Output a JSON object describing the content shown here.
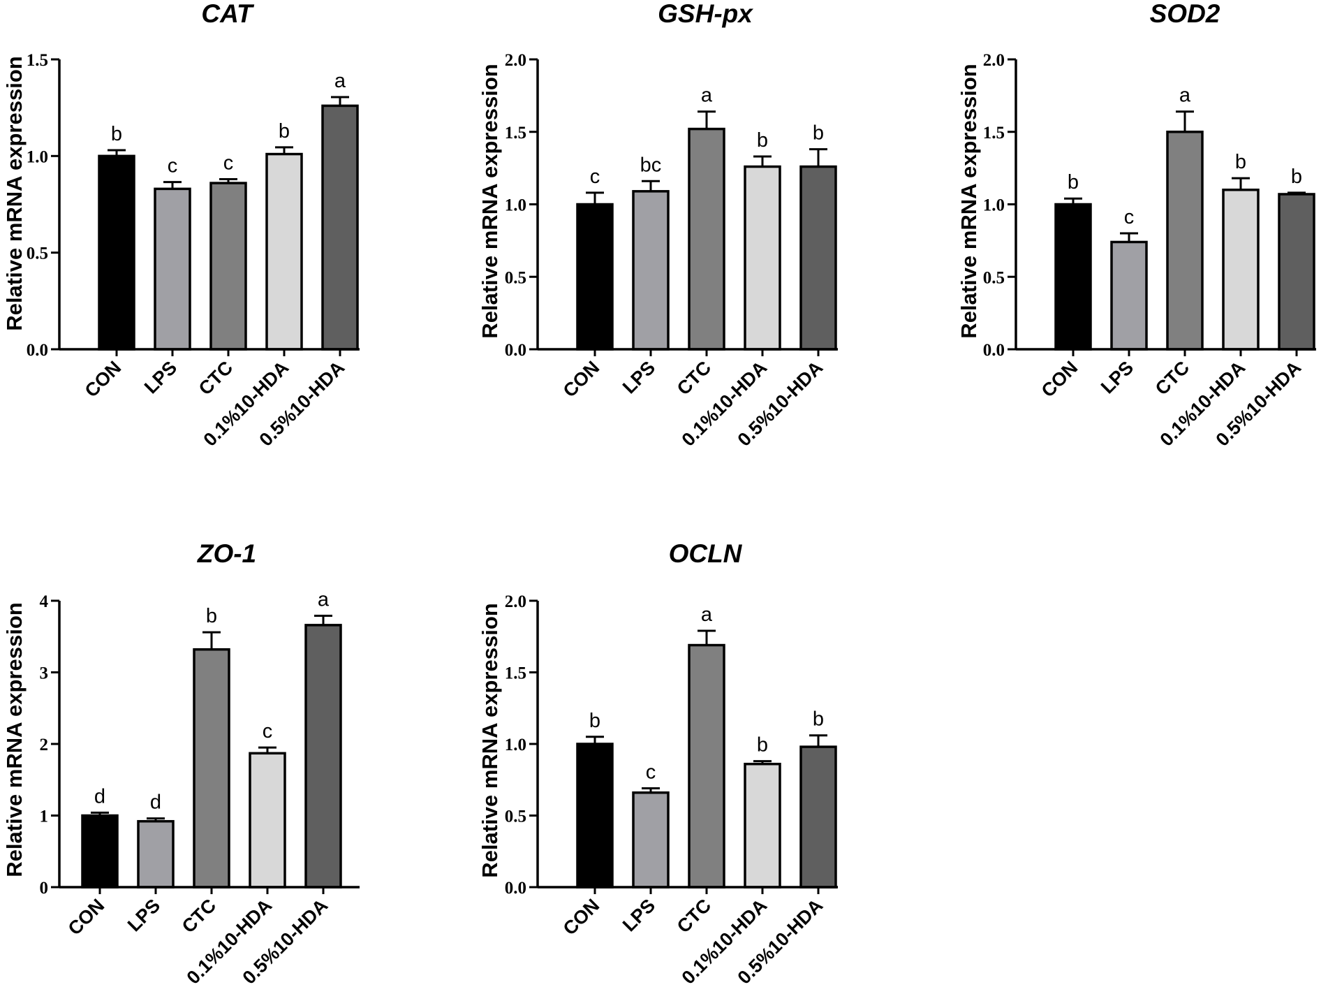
{
  "colors": {
    "bars": [
      "#000000",
      "#a0a0a5",
      "#808080",
      "#d8d8d8",
      "#5f5f5f"
    ],
    "axis": "#000000"
  },
  "chart_data": [
    {
      "type": "bar",
      "title": "CAT",
      "ylabel": "Relative mRNA expression",
      "xlabel": "",
      "categories": [
        "CON",
        "LPS",
        "CTC",
        "0.1%10-HDA",
        "0.5%10-HDA"
      ],
      "values": [
        1.0,
        0.83,
        0.86,
        1.01,
        1.26
      ],
      "errors": [
        0.03,
        0.035,
        0.02,
        0.035,
        0.045
      ],
      "significance": [
        "b",
        "c",
        "c",
        "b",
        "a"
      ],
      "ylim": [
        0,
        1.5
      ],
      "yticks": [
        0,
        0.5,
        1.0,
        1.5
      ],
      "ytick_labels": [
        "0.0",
        "0.5",
        "1.0",
        "1.5"
      ]
    },
    {
      "type": "bar",
      "title": "GSH-px",
      "ylabel": "Relative mRNA expression",
      "xlabel": "",
      "categories": [
        "CON",
        "LPS",
        "CTC",
        "0.1%10-HDA",
        "0.5%10-HDA"
      ],
      "values": [
        1.0,
        1.09,
        1.52,
        1.26,
        1.26
      ],
      "errors": [
        0.08,
        0.07,
        0.12,
        0.07,
        0.12
      ],
      "significance": [
        "c",
        "bc",
        "a",
        "b",
        "b"
      ],
      "ylim": [
        0,
        2.0
      ],
      "yticks": [
        0,
        0.5,
        1.0,
        1.5,
        2.0
      ],
      "ytick_labels": [
        "0.0",
        "0.5",
        "1.0",
        "1.5",
        "2.0"
      ]
    },
    {
      "type": "bar",
      "title": "SOD2",
      "ylabel": "Relative mRNA expression",
      "xlabel": "",
      "categories": [
        "CON",
        "LPS",
        "CTC",
        "0.1%10-HDA",
        "0.5%10-HDA"
      ],
      "values": [
        1.0,
        0.74,
        1.5,
        1.1,
        1.07
      ],
      "errors": [
        0.04,
        0.06,
        0.14,
        0.08,
        0.01
      ],
      "significance": [
        "b",
        "c",
        "a",
        "b",
        "b"
      ],
      "ylim": [
        0,
        2.0
      ],
      "yticks": [
        0,
        0.5,
        1.0,
        1.5,
        2.0
      ],
      "ytick_labels": [
        "0.0",
        "0.5",
        "1.0",
        "1.5",
        "2.0"
      ]
    },
    {
      "type": "bar",
      "title": "ZO-1",
      "ylabel": "Relative mRNA expression",
      "xlabel": "",
      "categories": [
        "CON",
        "LPS",
        "CTC",
        "0.1%10-HDA",
        "0.5%10-HDA"
      ],
      "values": [
        1.0,
        0.92,
        3.32,
        1.87,
        3.66
      ],
      "errors": [
        0.04,
        0.04,
        0.24,
        0.08,
        0.13
      ],
      "significance": [
        "d",
        "d",
        "b",
        "c",
        "a"
      ],
      "ylim": [
        0,
        4
      ],
      "yticks": [
        0,
        1,
        2,
        3,
        4
      ],
      "ytick_labels": [
        "0",
        "1",
        "2",
        "3",
        "4"
      ]
    },
    {
      "type": "bar",
      "title": "OCLN",
      "ylabel": "Relative mRNA expression",
      "xlabel": "",
      "categories": [
        "CON",
        "LPS",
        "CTC",
        "0.1%10-HDA",
        "0.5%10-HDA"
      ],
      "values": [
        1.0,
        0.66,
        1.69,
        0.86,
        0.98
      ],
      "errors": [
        0.05,
        0.03,
        0.1,
        0.02,
        0.08
      ],
      "significance": [
        "b",
        "c",
        "a",
        "b",
        "b"
      ],
      "ylim": [
        0,
        2.0
      ],
      "yticks": [
        0,
        0.5,
        1.0,
        1.5,
        2.0
      ],
      "ytick_labels": [
        "0.0",
        "0.5",
        "1.0",
        "1.5",
        "2.0"
      ]
    }
  ]
}
